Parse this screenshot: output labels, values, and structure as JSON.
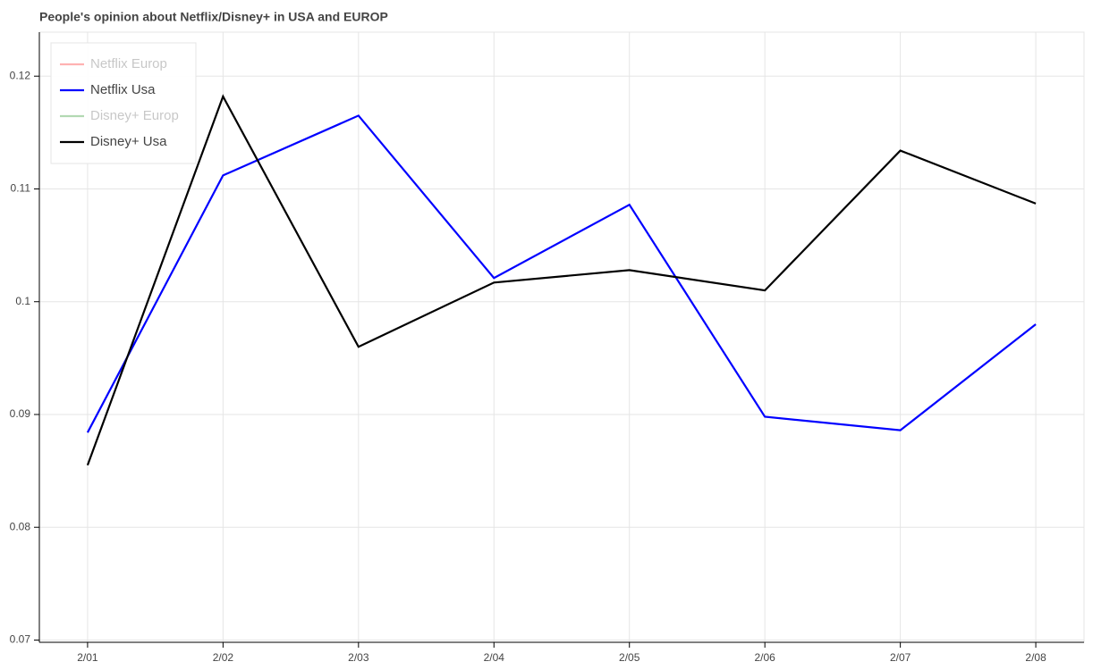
{
  "chart_data": {
    "type": "line",
    "title": "People's opinion about Netflix/Disney+ in USA and EUROP",
    "categories": [
      "2/01",
      "2/02",
      "2/03",
      "2/04",
      "2/05",
      "2/06",
      "2/07",
      "2/08"
    ],
    "series": [
      {
        "name": "Netflix Europ",
        "color": "red",
        "muted": true,
        "values": [
          null,
          null,
          null,
          null,
          null,
          null,
          null,
          null
        ]
      },
      {
        "name": "Netflix Usa",
        "color": "blue",
        "muted": false,
        "values": [
          0.0884,
          0.1112,
          0.1165,
          0.1021,
          0.1086,
          0.0898,
          0.0886,
          0.098
        ]
      },
      {
        "name": "Disney+ Europ",
        "color": "green",
        "muted": true,
        "values": [
          null,
          null,
          null,
          null,
          null,
          null,
          null,
          null
        ]
      },
      {
        "name": "Disney+ Usa",
        "color": "black",
        "muted": false,
        "values": [
          0.0855,
          0.1182,
          0.096,
          0.1017,
          0.1028,
          0.101,
          0.1134,
          0.1087
        ]
      }
    ],
    "ylim": [
      0.0698,
      0.1239
    ],
    "yticks": [
      0.07,
      0.08,
      0.09,
      0.1,
      0.11,
      0.12
    ],
    "grid": true,
    "legend": "top-left"
  }
}
